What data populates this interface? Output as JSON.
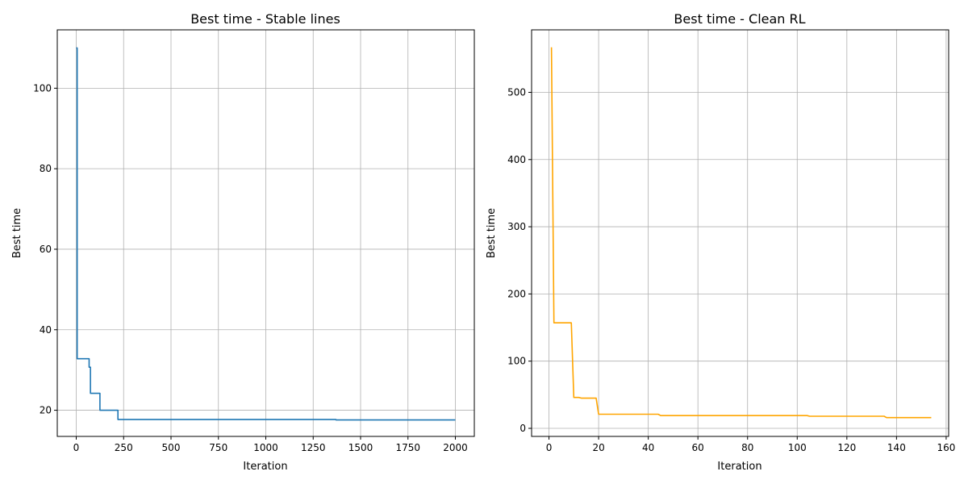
{
  "chart_data": [
    {
      "type": "line",
      "title": "Best time - Stable lines",
      "xlabel": "Iteration",
      "ylabel": "Best time",
      "xlim": [
        -100,
        2100
      ],
      "ylim": [
        13.5,
        114.5
      ],
      "xticks": [
        0,
        250,
        500,
        750,
        1000,
        1250,
        1500,
        1750,
        2000
      ],
      "yticks": [
        20,
        40,
        60,
        80,
        100
      ],
      "grid": true,
      "step": true,
      "color": "#1f77b4",
      "series": [
        {
          "x": [
            0,
            5,
            68,
            75,
            125,
            220,
            1370,
            2000
          ],
          "y": [
            110.0,
            32.8,
            30.7,
            24.2,
            20.0,
            17.7,
            17.6,
            17.6
          ]
        }
      ]
    },
    {
      "type": "line",
      "title": "Best time - Clean RL",
      "xlabel": "Iteration",
      "ylabel": "Best time",
      "xlim": [
        -7,
        161
      ],
      "ylim": [
        -12,
        593
      ],
      "xticks": [
        0,
        20,
        40,
        60,
        80,
        100,
        120,
        140,
        160
      ],
      "yticks": [
        0,
        100,
        200,
        300,
        400,
        500
      ],
      "grid": true,
      "step": false,
      "color": "#ffa500",
      "series": [
        {
          "x": [
            1,
            2,
            9,
            10,
            12,
            13,
            19,
            20,
            44,
            45,
            104,
            105,
            135,
            136,
            154
          ],
          "y": [
            567,
            157,
            157,
            46,
            46,
            45,
            45,
            21,
            21,
            19,
            19,
            18,
            18,
            16,
            16
          ]
        }
      ]
    }
  ]
}
